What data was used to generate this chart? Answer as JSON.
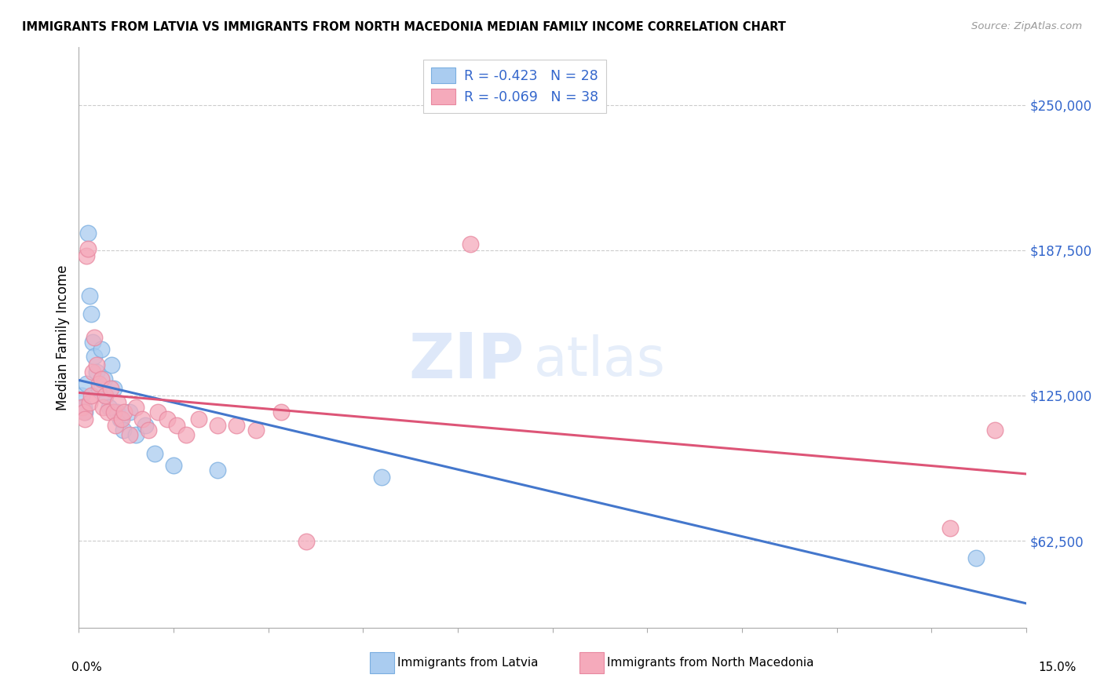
{
  "title": "IMMIGRANTS FROM LATVIA VS IMMIGRANTS FROM NORTH MACEDONIA MEDIAN FAMILY INCOME CORRELATION CHART",
  "source": "Source: ZipAtlas.com",
  "ylabel": "Median Family Income",
  "y_ticks": [
    62500,
    125000,
    187500,
    250000
  ],
  "y_tick_labels": [
    "$62,500",
    "$125,000",
    "$187,500",
    "$250,000"
  ],
  "x_min": 0.0,
  "x_max": 15.0,
  "y_min": 25000,
  "y_max": 275000,
  "watermark_zip": "ZIP",
  "watermark_atlas": "atlas",
  "legend_r1": "R = -0.423",
  "legend_n1": "N = 28",
  "legend_r2": "R = -0.069",
  "legend_n2": "N = 38",
  "series1_label": "Immigrants from Latvia",
  "series2_label": "Immigrants from North Macedonia",
  "series1_color": "#aaccf0",
  "series2_color": "#f5aabb",
  "series1_edge": "#7aaee0",
  "series2_edge": "#e888a0",
  "series1_line_color": "#4477cc",
  "series2_line_color": "#dd5577",
  "latvia_x": [
    0.05,
    0.08,
    0.1,
    0.12,
    0.15,
    0.17,
    0.2,
    0.22,
    0.25,
    0.28,
    0.32,
    0.35,
    0.4,
    0.42,
    0.48,
    0.52,
    0.55,
    0.6,
    0.65,
    0.7,
    0.8,
    0.9,
    1.05,
    1.2,
    1.5,
    2.2,
    4.8,
    14.2
  ],
  "latvia_y": [
    125000,
    120000,
    118000,
    130000,
    195000,
    168000,
    160000,
    148000,
    142000,
    135000,
    128000,
    145000,
    132000,
    125000,
    120000,
    138000,
    128000,
    118000,
    115000,
    110000,
    118000,
    108000,
    112000,
    100000,
    95000,
    93000,
    90000,
    55000
  ],
  "macedonia_x": [
    0.05,
    0.08,
    0.1,
    0.12,
    0.15,
    0.17,
    0.2,
    0.22,
    0.25,
    0.28,
    0.32,
    0.35,
    0.38,
    0.42,
    0.45,
    0.5,
    0.55,
    0.58,
    0.62,
    0.68,
    0.72,
    0.8,
    0.9,
    1.0,
    1.1,
    1.25,
    1.4,
    1.55,
    1.7,
    1.9,
    2.2,
    2.5,
    2.8,
    3.2,
    3.6,
    6.2,
    13.8,
    14.5
  ],
  "macedonia_y": [
    120000,
    118000,
    115000,
    185000,
    188000,
    122000,
    125000,
    135000,
    150000,
    138000,
    130000,
    132000,
    120000,
    125000,
    118000,
    128000,
    118000,
    112000,
    122000,
    115000,
    118000,
    108000,
    120000,
    115000,
    110000,
    118000,
    115000,
    112000,
    108000,
    115000,
    112000,
    112000,
    110000,
    118000,
    62000,
    190000,
    68000,
    110000
  ]
}
